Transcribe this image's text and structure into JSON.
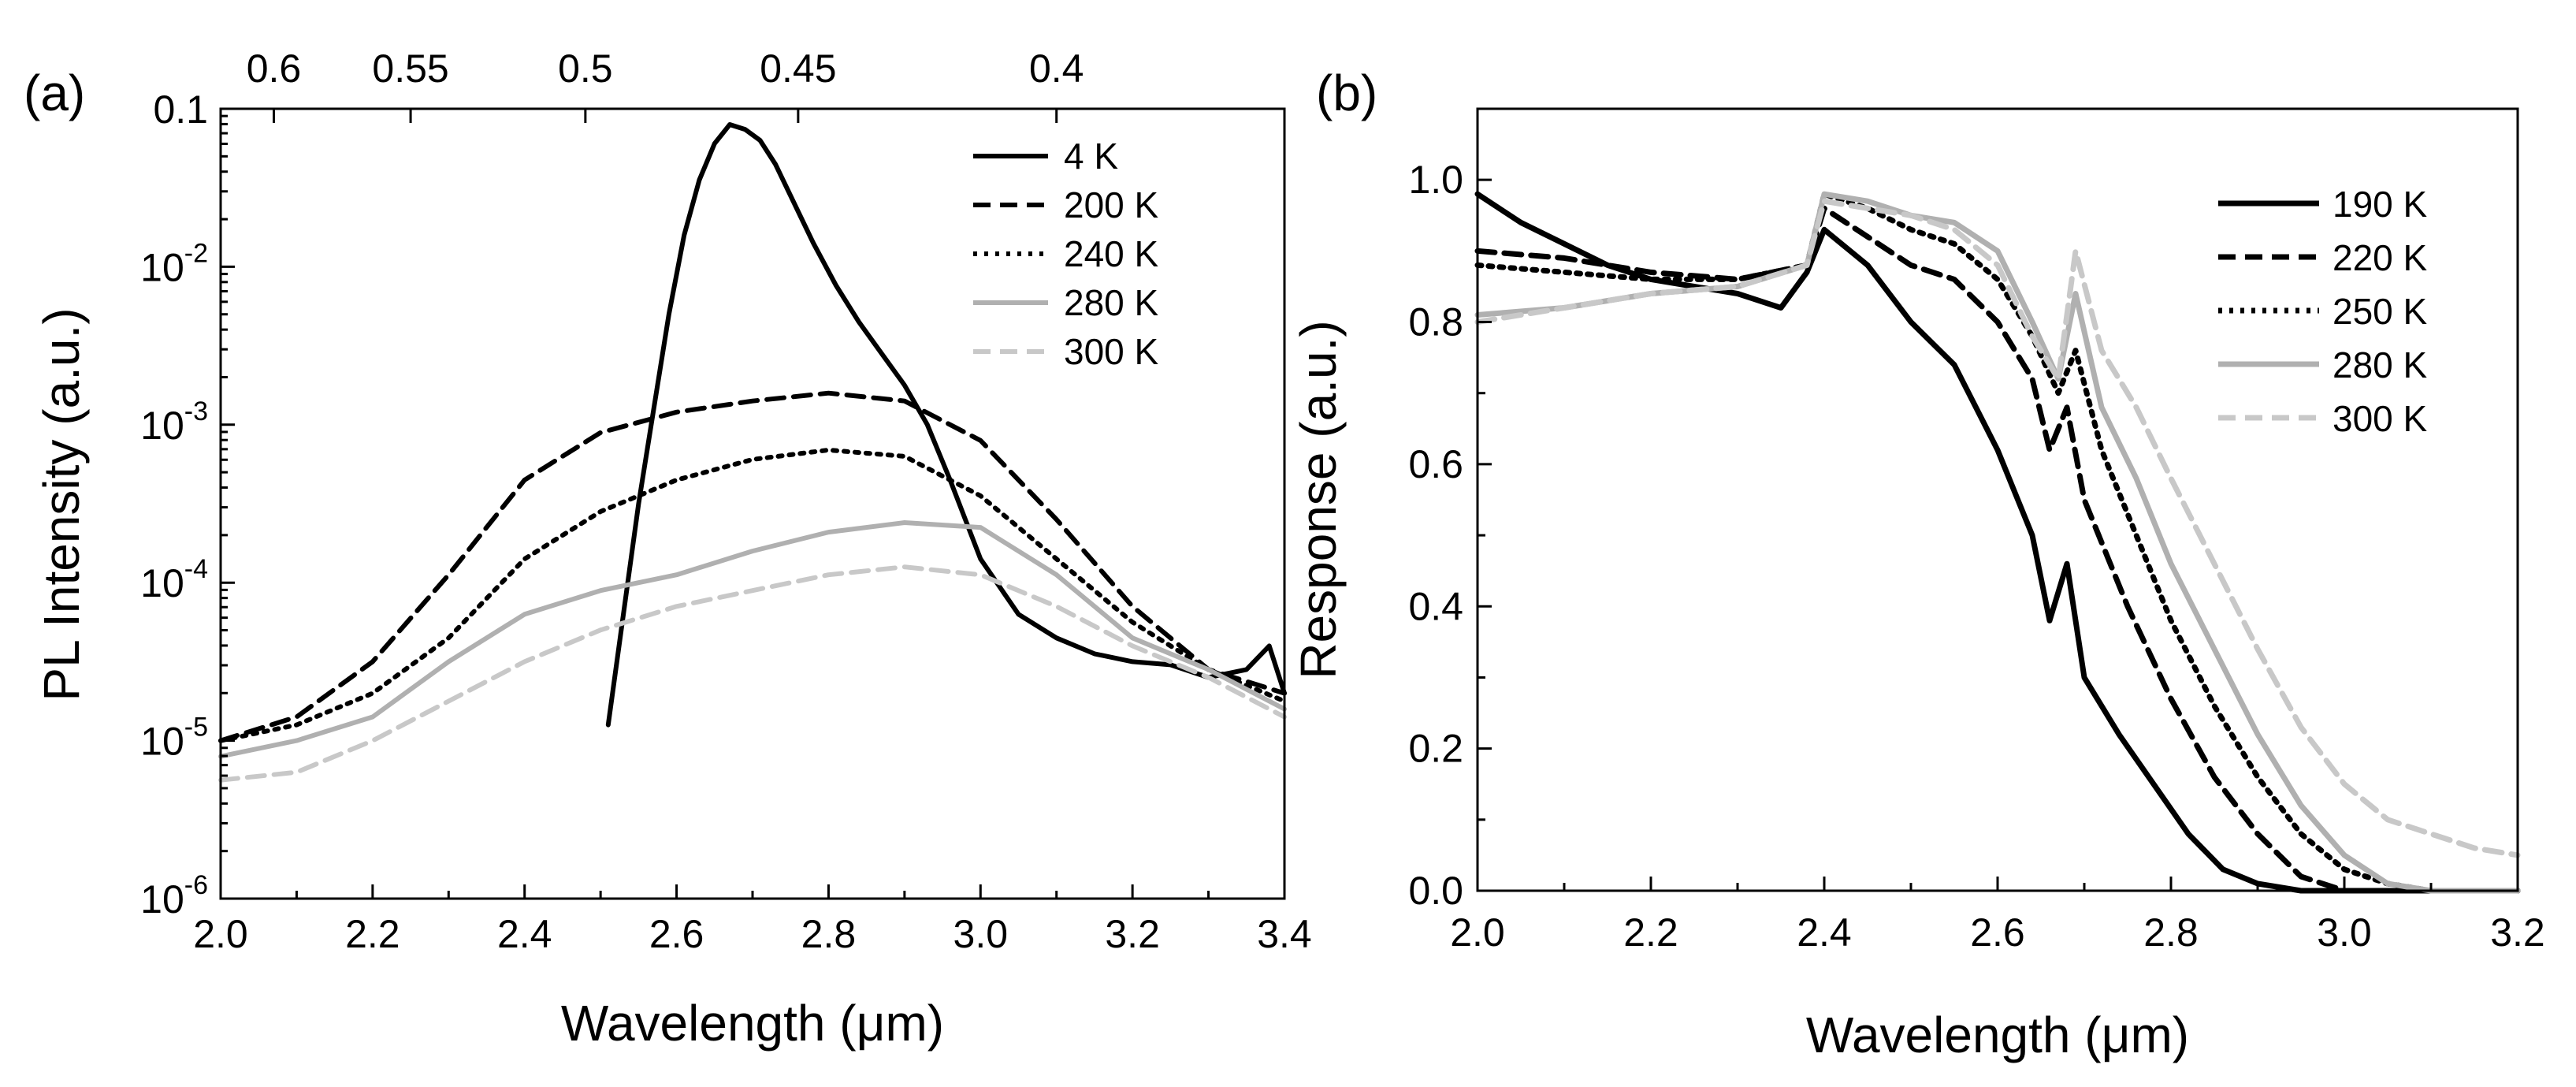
{
  "chart_data": [
    {
      "type": "line",
      "panel_label": "(a)",
      "xlabel": "Wavelength (μm)",
      "ylabel": "PL Intensity (a.u.)",
      "yscale": "log",
      "xlim": [
        2.0,
        3.4
      ],
      "ylim_exp": [
        -6,
        -1
      ],
      "x_ticks": [
        "2.0",
        "2.2",
        "2.4",
        "2.6",
        "2.8",
        "3.0",
        "3.2",
        "3.4"
      ],
      "y_ticks": [
        {
          "exp": -6,
          "base": "10",
          "sup": "-6"
        },
        {
          "exp": -5,
          "base": "10",
          "sup": "-5"
        },
        {
          "exp": -4,
          "base": "10",
          "sup": "-4"
        },
        {
          "exp": -3,
          "base": "10",
          "sup": "-3"
        },
        {
          "exp": -2,
          "base": "10",
          "sup": "-2"
        },
        {
          "exp": -1,
          "base": "0.1",
          "sup": ""
        }
      ],
      "top_axis": {
        "label": "",
        "ticks": [
          {
            "text": "0.6",
            "wavelength": 2.07
          },
          {
            "text": "0.55",
            "wavelength": 2.25
          },
          {
            "text": "0.5",
            "wavelength": 2.48
          },
          {
            "text": "0.45",
            "wavelength": 2.76
          },
          {
            "text": "0.4",
            "wavelength": 3.1
          }
        ]
      },
      "legend_position": "top-right",
      "series": [
        {
          "name": "4 K",
          "color": "#000000",
          "dash": "solid",
          "x": [
            2.51,
            2.53,
            2.55,
            2.57,
            2.59,
            2.61,
            2.63,
            2.65,
            2.67,
            2.69,
            2.71,
            2.73,
            2.75,
            2.78,
            2.81,
            2.84,
            2.87,
            2.9,
            2.93,
            2.96,
            3.0,
            3.05,
            3.1,
            3.15,
            3.2,
            3.25,
            3.3,
            3.35,
            3.38,
            3.4
          ],
          "y": [
            -4.9,
            -4.2,
            -3.5,
            -2.9,
            -2.3,
            -1.8,
            -1.45,
            -1.22,
            -1.1,
            -1.13,
            -1.2,
            -1.35,
            -1.55,
            -1.85,
            -2.12,
            -2.35,
            -2.55,
            -2.75,
            -3.0,
            -3.35,
            -3.85,
            -4.2,
            -4.35,
            -4.45,
            -4.5,
            -4.52,
            -4.6,
            -4.55,
            -4.4,
            -4.7
          ]
        },
        {
          "name": "200 K",
          "color": "#000000",
          "dash": "dashed",
          "x": [
            2.0,
            2.1,
            2.2,
            2.3,
            2.4,
            2.5,
            2.6,
            2.7,
            2.8,
            2.9,
            3.0,
            3.1,
            3.2,
            3.3,
            3.4
          ],
          "y": [
            -5.0,
            -4.85,
            -4.5,
            -3.95,
            -3.35,
            -3.05,
            -2.92,
            -2.85,
            -2.8,
            -2.85,
            -3.1,
            -3.6,
            -4.15,
            -4.55,
            -4.7
          ]
        },
        {
          "name": "240 K",
          "color": "#000000",
          "dash": "dotted",
          "x": [
            2.0,
            2.1,
            2.2,
            2.3,
            2.4,
            2.5,
            2.6,
            2.7,
            2.8,
            2.9,
            3.0,
            3.1,
            3.2,
            3.3,
            3.4
          ],
          "y": [
            -5.0,
            -4.9,
            -4.7,
            -4.35,
            -3.85,
            -3.55,
            -3.35,
            -3.22,
            -3.16,
            -3.2,
            -3.45,
            -3.85,
            -4.25,
            -4.55,
            -4.75
          ]
        },
        {
          "name": "280 K",
          "color": "#b0b0b0",
          "dash": "solid",
          "x": [
            2.0,
            2.1,
            2.2,
            2.3,
            2.4,
            2.5,
            2.6,
            2.7,
            2.8,
            2.9,
            3.0,
            3.1,
            3.2,
            3.3,
            3.4
          ],
          "y": [
            -5.1,
            -5.0,
            -4.85,
            -4.5,
            -4.2,
            -4.05,
            -3.95,
            -3.8,
            -3.68,
            -3.62,
            -3.65,
            -3.95,
            -4.35,
            -4.55,
            -4.8
          ]
        },
        {
          "name": "300 K",
          "color": "#c8c8c8",
          "dash": "dashed",
          "x": [
            2.0,
            2.1,
            2.2,
            2.3,
            2.4,
            2.5,
            2.6,
            2.7,
            2.8,
            2.9,
            3.0,
            3.1,
            3.2,
            3.3,
            3.4
          ],
          "y": [
            -5.25,
            -5.2,
            -5.0,
            -4.75,
            -4.5,
            -4.3,
            -4.15,
            -4.05,
            -3.95,
            -3.9,
            -3.95,
            -4.15,
            -4.4,
            -4.6,
            -4.85
          ]
        }
      ]
    },
    {
      "type": "line",
      "panel_label": "(b)",
      "xlabel": "Wavelength (μm)",
      "ylabel": "Response (a.u.)",
      "yscale": "linear",
      "xlim": [
        2.0,
        3.2
      ],
      "ylim": [
        0.0,
        1.1
      ],
      "x_ticks": [
        "2.0",
        "2.2",
        "2.4",
        "2.6",
        "2.8",
        "3.0",
        "3.2"
      ],
      "y_ticks": [
        "0.0",
        "0.2",
        "0.4",
        "0.6",
        "0.8",
        "1.0"
      ],
      "legend_position": "top-right",
      "series": [
        {
          "name": "190 K",
          "color": "#000000",
          "dash": "solid",
          "x": [
            2.0,
            2.05,
            2.1,
            2.15,
            2.2,
            2.25,
            2.3,
            2.35,
            2.38,
            2.4,
            2.45,
            2.5,
            2.55,
            2.6,
            2.64,
            2.66,
            2.68,
            2.7,
            2.74,
            2.78,
            2.82,
            2.86,
            2.9,
            2.95,
            3.0,
            3.1,
            3.2
          ],
          "y": [
            0.98,
            0.94,
            0.91,
            0.88,
            0.86,
            0.85,
            0.84,
            0.82,
            0.87,
            0.93,
            0.88,
            0.8,
            0.74,
            0.62,
            0.5,
            0.38,
            0.46,
            0.3,
            0.22,
            0.15,
            0.08,
            0.03,
            0.01,
            0.0,
            0.0,
            0.0,
            0.0
          ]
        },
        {
          "name": "220 K",
          "color": "#000000",
          "dash": "dashed",
          "x": [
            2.0,
            2.1,
            2.2,
            2.3,
            2.38,
            2.4,
            2.45,
            2.5,
            2.55,
            2.6,
            2.64,
            2.66,
            2.68,
            2.7,
            2.75,
            2.8,
            2.85,
            2.9,
            2.95,
            3.0,
            3.1,
            3.2
          ],
          "y": [
            0.9,
            0.89,
            0.87,
            0.86,
            0.88,
            0.96,
            0.92,
            0.88,
            0.86,
            0.8,
            0.72,
            0.62,
            0.68,
            0.55,
            0.4,
            0.27,
            0.16,
            0.08,
            0.02,
            0.0,
            0.0,
            0.0
          ]
        },
        {
          "name": "250 K",
          "color": "#000000",
          "dash": "dotted",
          "x": [
            2.0,
            2.1,
            2.2,
            2.3,
            2.38,
            2.4,
            2.45,
            2.5,
            2.55,
            2.6,
            2.64,
            2.67,
            2.69,
            2.72,
            2.76,
            2.8,
            2.85,
            2.9,
            2.95,
            3.0,
            3.05,
            3.1,
            3.2
          ],
          "y": [
            0.88,
            0.87,
            0.86,
            0.86,
            0.88,
            0.98,
            0.96,
            0.93,
            0.91,
            0.86,
            0.78,
            0.7,
            0.76,
            0.62,
            0.5,
            0.38,
            0.26,
            0.16,
            0.08,
            0.03,
            0.01,
            0.0,
            0.0
          ]
        },
        {
          "name": "280 K",
          "color": "#b0b0b0",
          "dash": "solid",
          "x": [
            2.0,
            2.1,
            2.2,
            2.3,
            2.38,
            2.4,
            2.45,
            2.5,
            2.55,
            2.6,
            2.64,
            2.67,
            2.69,
            2.72,
            2.76,
            2.8,
            2.85,
            2.9,
            2.95,
            3.0,
            3.05,
            3.1,
            3.2
          ],
          "y": [
            0.81,
            0.82,
            0.84,
            0.85,
            0.88,
            0.98,
            0.97,
            0.95,
            0.94,
            0.9,
            0.8,
            0.72,
            0.84,
            0.68,
            0.58,
            0.46,
            0.34,
            0.22,
            0.12,
            0.05,
            0.01,
            0.0,
            0.0
          ]
        },
        {
          "name": "300 K",
          "color": "#c8c8c8",
          "dash": "dashed",
          "x": [
            2.0,
            2.1,
            2.2,
            2.3,
            2.38,
            2.4,
            2.45,
            2.5,
            2.55,
            2.6,
            2.64,
            2.67,
            2.69,
            2.72,
            2.76,
            2.8,
            2.85,
            2.9,
            2.95,
            3.0,
            3.05,
            3.1,
            3.15,
            3.2
          ],
          "y": [
            0.8,
            0.82,
            0.84,
            0.85,
            0.88,
            0.97,
            0.96,
            0.95,
            0.93,
            0.88,
            0.78,
            0.72,
            0.9,
            0.76,
            0.68,
            0.58,
            0.46,
            0.34,
            0.23,
            0.15,
            0.1,
            0.08,
            0.06,
            0.05
          ]
        }
      ]
    }
  ]
}
